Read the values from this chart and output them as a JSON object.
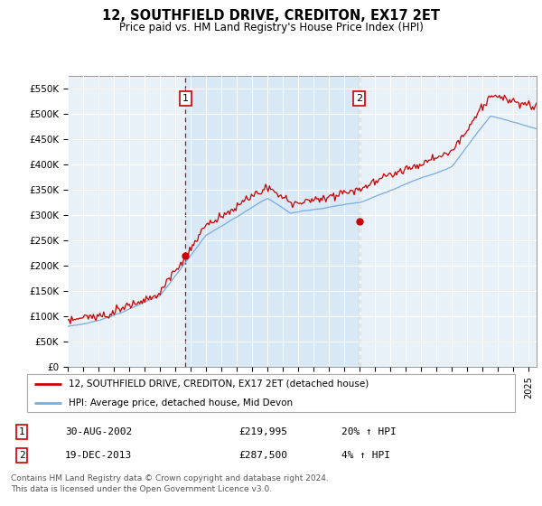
{
  "title": "12, SOUTHFIELD DRIVE, CREDITON, EX17 2ET",
  "subtitle": "Price paid vs. HM Land Registry's House Price Index (HPI)",
  "ylim": [
    0,
    575000
  ],
  "yticks": [
    0,
    50000,
    100000,
    150000,
    200000,
    250000,
    300000,
    350000,
    400000,
    450000,
    500000,
    550000
  ],
  "ytick_labels": [
    "£0",
    "£50K",
    "£100K",
    "£150K",
    "£200K",
    "£250K",
    "£300K",
    "£350K",
    "£400K",
    "£450K",
    "£500K",
    "£550K"
  ],
  "hpi_color": "#7aacde",
  "price_color": "#cc0000",
  "shade_color": "#d8e8f5",
  "sale1_date": 2002.66,
  "sale1_price": 219995,
  "sale2_date": 2013.96,
  "sale2_price": 287500,
  "legend_price_label": "12, SOUTHFIELD DRIVE, CREDITON, EX17 2ET (detached house)",
  "legend_hpi_label": "HPI: Average price, detached house, Mid Devon",
  "annotation1_box_label": "1",
  "annotation1_date": "30-AUG-2002",
  "annotation1_price": "£219,995",
  "annotation1_hpi": "20% ↑ HPI",
  "annotation2_box_label": "2",
  "annotation2_date": "19-DEC-2013",
  "annotation2_price": "£287,500",
  "annotation2_hpi": "4% ↑ HPI",
  "footnote1": "Contains HM Land Registry data © Crown copyright and database right 2024.",
  "footnote2": "This data is licensed under the Open Government Licence v3.0."
}
